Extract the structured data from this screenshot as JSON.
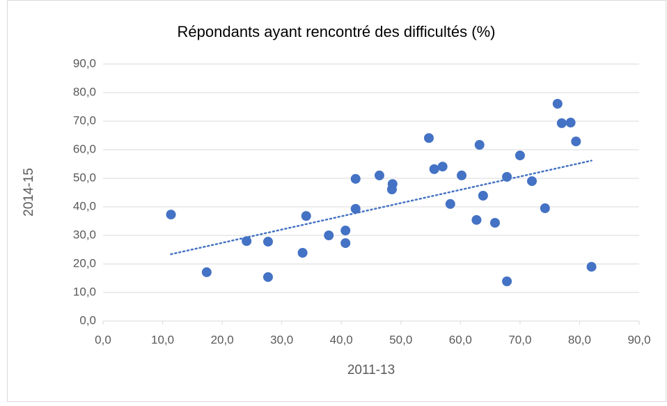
{
  "chart_data": {
    "type": "scatter",
    "title": "Répondants ayant rencontré des difficultés (%)",
    "x_label": "2011-13",
    "y_label": "2014-15",
    "color": "#4472c4",
    "trendline": true,
    "grid": true,
    "x": [
      11.4,
      17.4,
      24.1,
      27.7,
      27.7,
      33.5,
      34.1,
      37.9,
      40.7,
      40.7,
      42.4,
      42.4,
      46.4,
      48.6,
      48.5,
      54.7,
      55.6,
      57.0,
      58.3,
      60.2,
      62.7,
      63.2,
      63.8,
      65.8,
      67.8,
      67.8,
      70.0,
      72.0,
      74.2,
      76.3,
      77.0,
      78.5,
      79.4,
      82.0
    ],
    "values": [
      37.3,
      17.1,
      28.0,
      27.8,
      15.4,
      23.9,
      36.8,
      30.0,
      31.7,
      27.3,
      49.8,
      39.3,
      51.0,
      48.0,
      46.1,
      64.1,
      53.2,
      54.1,
      41.0,
      51.0,
      35.4,
      61.7,
      43.9,
      34.4,
      50.5,
      13.9,
      58.0,
      49.0,
      39.5,
      76.1,
      69.3,
      69.5,
      62.9,
      19.0
    ],
    "xlim": [
      0,
      90
    ],
    "xticks": [
      {
        "value": 0,
        "label": "0,0"
      },
      {
        "value": 10,
        "label": "10,0"
      },
      {
        "value": 20,
        "label": "20,0"
      },
      {
        "value": 30,
        "label": "30,0"
      },
      {
        "value": 40,
        "label": "40,0"
      },
      {
        "value": 50,
        "label": "50,0"
      },
      {
        "value": 60,
        "label": "60,0"
      },
      {
        "value": 70,
        "label": "70,0"
      },
      {
        "value": 80,
        "label": "80,0"
      },
      {
        "value": 90,
        "label": "90,0"
      }
    ],
    "ylim": [
      0,
      90
    ],
    "yticks": [
      {
        "value": 0,
        "label": "0,0"
      },
      {
        "value": 10,
        "label": "10,0"
      },
      {
        "value": 20,
        "label": "20,0"
      },
      {
        "value": 30,
        "label": "30,0"
      },
      {
        "value": 40,
        "label": "40,0"
      },
      {
        "value": 50,
        "label": "50,0"
      },
      {
        "value": 60,
        "label": "60,0"
      },
      {
        "value": 70,
        "label": "70,0"
      },
      {
        "value": 80,
        "label": "80,0"
      },
      {
        "value": 90,
        "label": "90,0"
      }
    ]
  }
}
